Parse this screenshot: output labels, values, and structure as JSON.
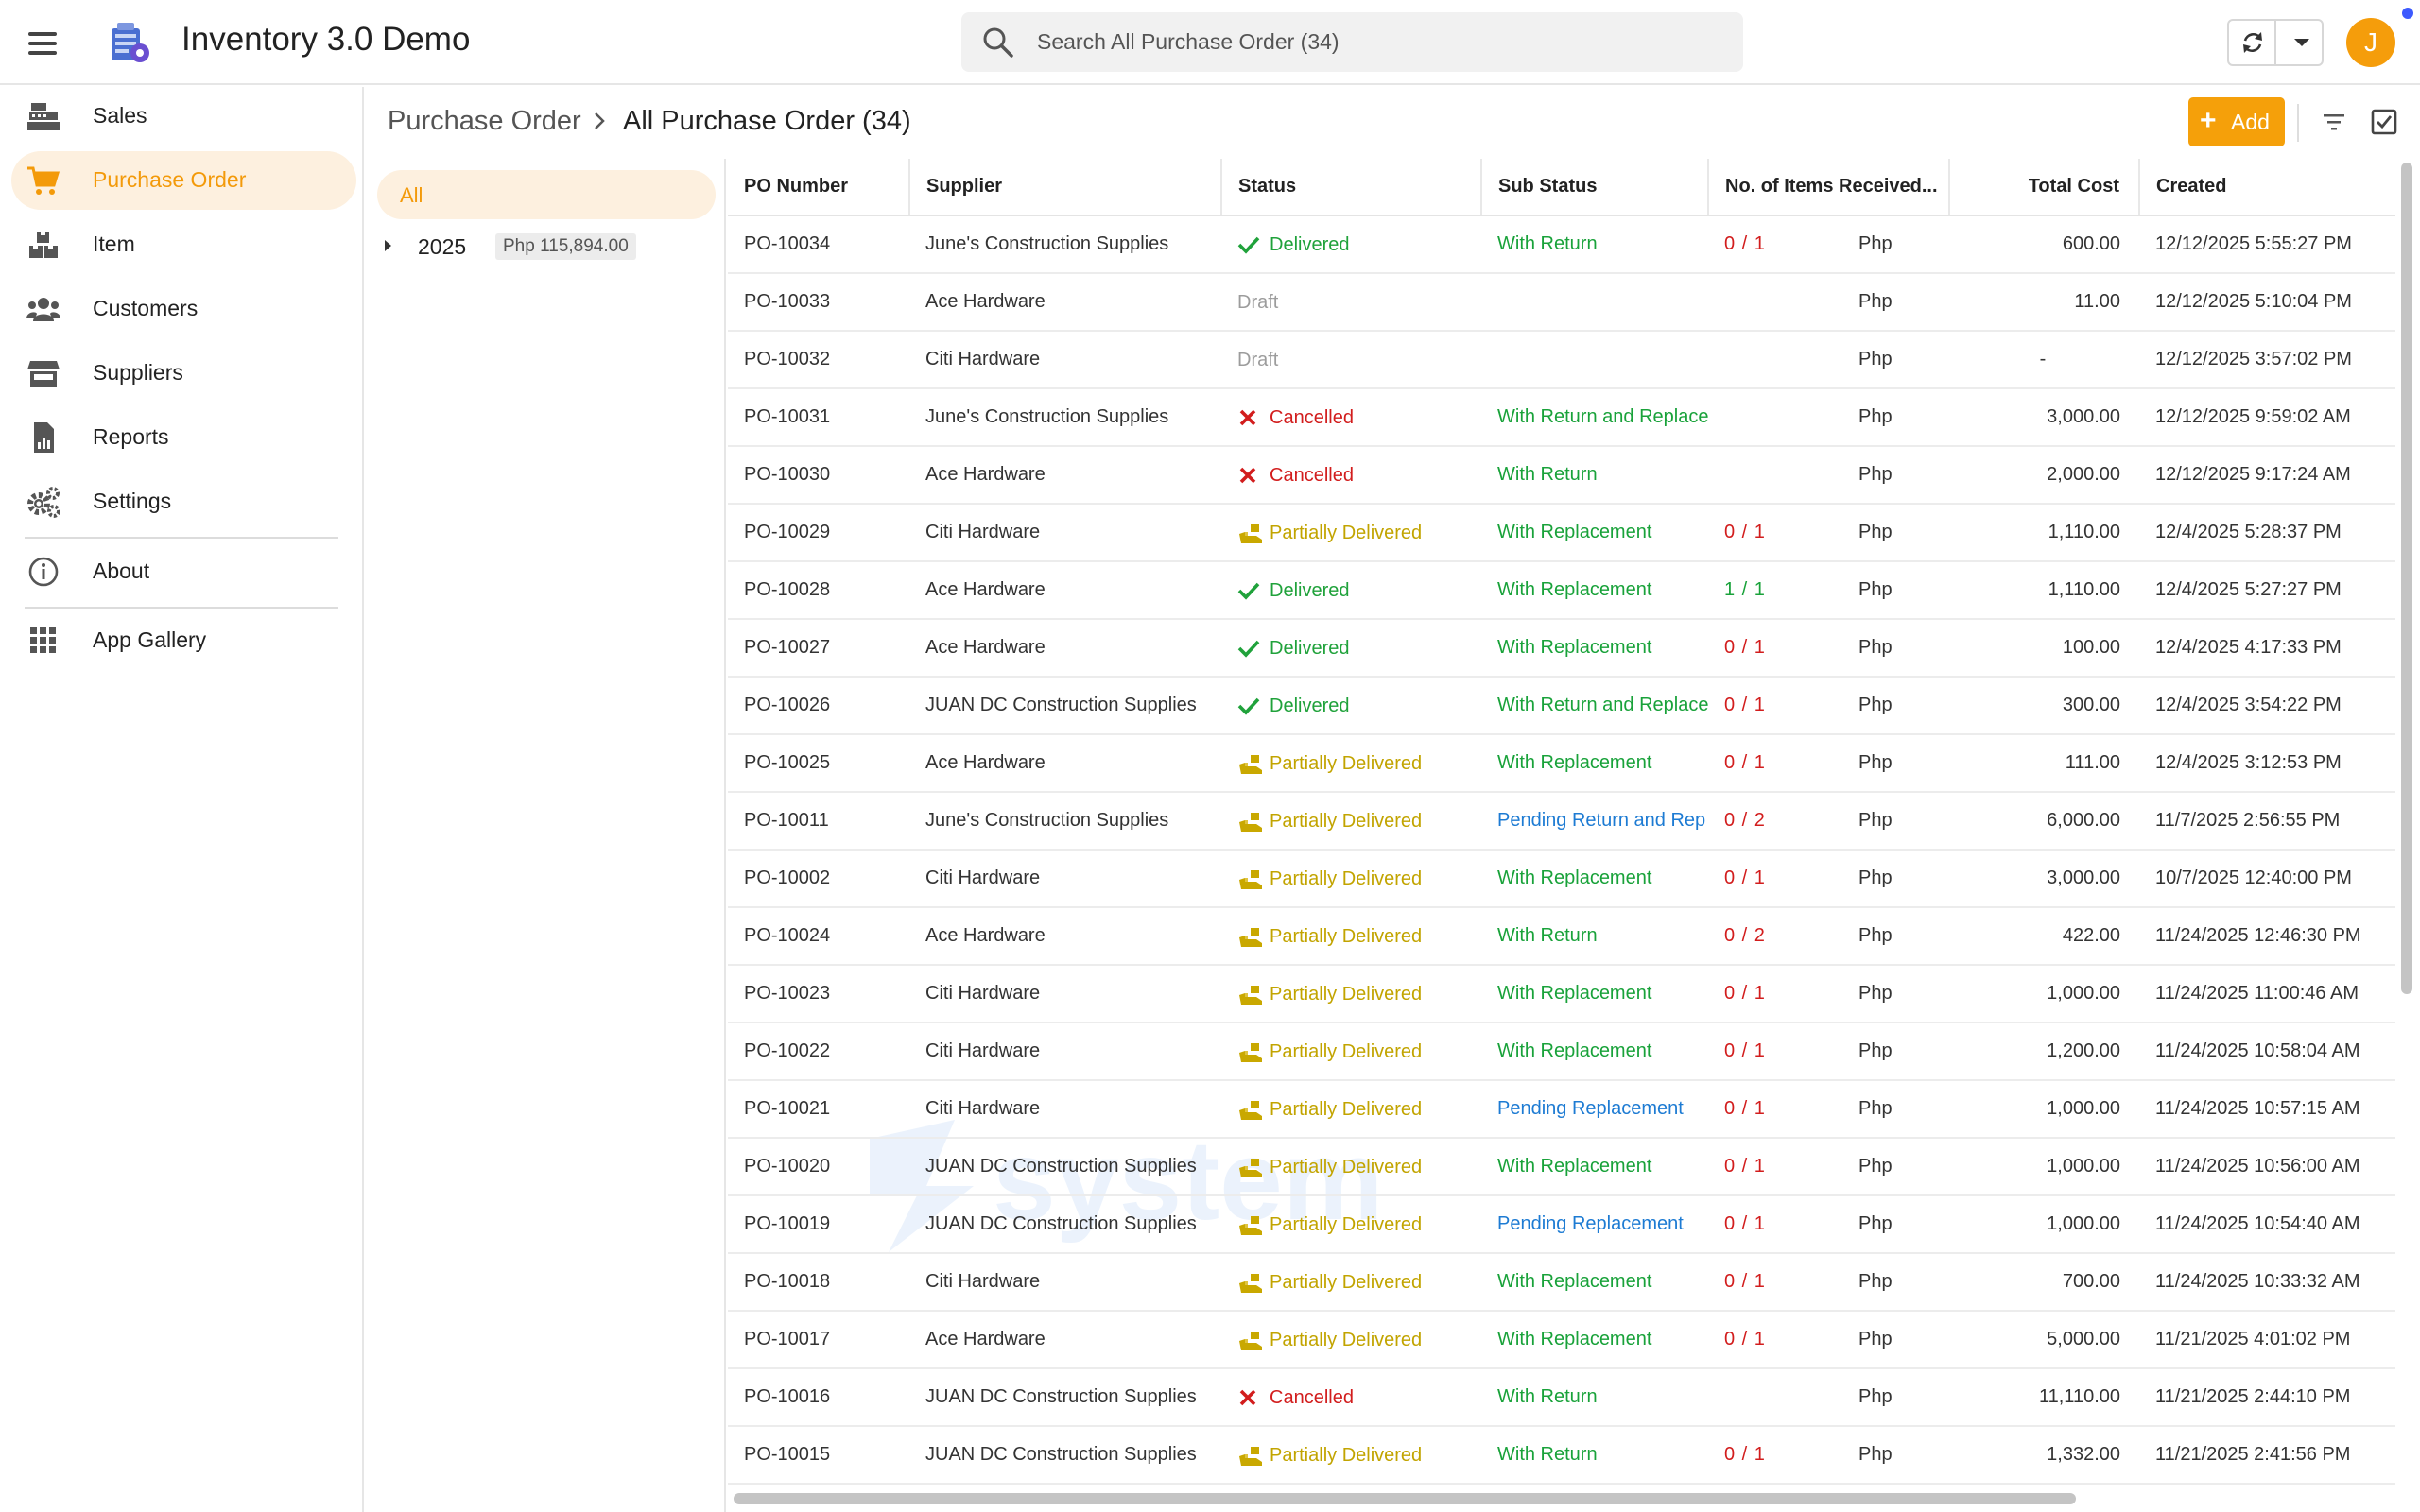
{
  "app": {
    "title": "Inventory 3.0 Demo",
    "user_initial": "J"
  },
  "search": {
    "placeholder": "Search All Purchase Order (34)"
  },
  "sidebar": {
    "items": [
      {
        "label": "Sales",
        "icon": "cash-register-icon"
      },
      {
        "label": "Purchase Order",
        "icon": "cart-icon",
        "active": true
      },
      {
        "label": "Item",
        "icon": "boxes-icon"
      },
      {
        "label": "Customers",
        "icon": "users-icon"
      },
      {
        "label": "Suppliers",
        "icon": "store-icon"
      },
      {
        "label": "Reports",
        "icon": "report-icon"
      },
      {
        "label": "Settings",
        "icon": "gears-icon"
      },
      {
        "label": "About",
        "icon": "info-icon"
      },
      {
        "label": "App Gallery",
        "icon": "grid-icon"
      }
    ]
  },
  "breadcrumb": {
    "root": "Purchase Order",
    "current": "All Purchase Order (34)"
  },
  "toolbar": {
    "add_label": "Add"
  },
  "groups": {
    "all_label": "All",
    "year": "2025",
    "year_total": "Php 115,894.00"
  },
  "table": {
    "columns": [
      "PO Number",
      "Supplier",
      "Status",
      "Sub Status",
      "No. of Items Received...",
      "Total Cost",
      "Created"
    ],
    "rows": [
      {
        "po": "PO-10034",
        "supplier": "June's Construction Supplies",
        "status": "Delivered",
        "sub_status": "With Return",
        "items": "0 / 1",
        "currency": "Php",
        "total": "600.00",
        "created": "12/12/2025 5:55:27 PM"
      },
      {
        "po": "PO-10033",
        "supplier": "Ace Hardware",
        "status": "Draft",
        "sub_status": "",
        "items": "",
        "currency": "Php",
        "total": "11.00",
        "created": "12/12/2025 5:10:04 PM"
      },
      {
        "po": "PO-10032",
        "supplier": "Citi Hardware",
        "status": "Draft",
        "sub_status": "",
        "items": "",
        "currency": "Php",
        "total": "-",
        "created": "12/12/2025 3:57:02 PM"
      },
      {
        "po": "PO-10031",
        "supplier": "June's Construction Supplies",
        "status": "Cancelled",
        "sub_status": "With Return and Replace",
        "items": "",
        "currency": "Php",
        "total": "3,000.00",
        "created": "12/12/2025 9:59:02 AM"
      },
      {
        "po": "PO-10030",
        "supplier": "Ace Hardware",
        "status": "Cancelled",
        "sub_status": "With Return",
        "items": "",
        "currency": "Php",
        "total": "2,000.00",
        "created": "12/12/2025 9:17:24 AM"
      },
      {
        "po": "PO-10029",
        "supplier": "Citi Hardware",
        "status": "Partially Delivered",
        "sub_status": "With Replacement",
        "items": "0 / 1",
        "currency": "Php",
        "total": "1,110.00",
        "created": "12/4/2025 5:28:37 PM"
      },
      {
        "po": "PO-10028",
        "supplier": "Ace Hardware",
        "status": "Delivered",
        "sub_status": "With Replacement",
        "items": "1 / 1",
        "currency": "Php",
        "total": "1,110.00",
        "created": "12/4/2025 5:27:27 PM"
      },
      {
        "po": "PO-10027",
        "supplier": "Ace Hardware",
        "status": "Delivered",
        "sub_status": "With Replacement",
        "items": "0 / 1",
        "currency": "Php",
        "total": "100.00",
        "created": "12/4/2025 4:17:33 PM"
      },
      {
        "po": "PO-10026",
        "supplier": "JUAN DC Construction Supplies",
        "status": "Delivered",
        "sub_status": "With Return and Replace",
        "items": "0 / 1",
        "currency": "Php",
        "total": "300.00",
        "created": "12/4/2025 3:54:22 PM"
      },
      {
        "po": "PO-10025",
        "supplier": "Ace Hardware",
        "status": "Partially Delivered",
        "sub_status": "With Replacement",
        "items": "0 / 1",
        "currency": "Php",
        "total": "111.00",
        "created": "12/4/2025 3:12:53 PM"
      },
      {
        "po": "PO-10011",
        "supplier": "June's Construction Supplies",
        "status": "Partially Delivered",
        "sub_status": "Pending Return and Rep",
        "items": "0 / 2",
        "currency": "Php",
        "total": "6,000.00",
        "created": "11/7/2025 2:56:55 PM"
      },
      {
        "po": "PO-10002",
        "supplier": "Citi Hardware",
        "status": "Partially Delivered",
        "sub_status": "With Replacement",
        "items": "0 / 1",
        "currency": "Php",
        "total": "3,000.00",
        "created": "10/7/2025 12:40:00 PM"
      },
      {
        "po": "PO-10024",
        "supplier": "Ace Hardware",
        "status": "Partially Delivered",
        "sub_status": "With Return",
        "items": "0 / 2",
        "currency": "Php",
        "total": "422.00",
        "created": "11/24/2025 12:46:30 PM"
      },
      {
        "po": "PO-10023",
        "supplier": "Citi Hardware",
        "status": "Partially Delivered",
        "sub_status": "With Replacement",
        "items": "0 / 1",
        "currency": "Php",
        "total": "1,000.00",
        "created": "11/24/2025 11:00:46 AM"
      },
      {
        "po": "PO-10022",
        "supplier": "Citi Hardware",
        "status": "Partially Delivered",
        "sub_status": "With Replacement",
        "items": "0 / 1",
        "currency": "Php",
        "total": "1,200.00",
        "created": "11/24/2025 10:58:04 AM"
      },
      {
        "po": "PO-10021",
        "supplier": "Citi Hardware",
        "status": "Partially Delivered",
        "sub_status": "Pending Replacement",
        "items": "0 / 1",
        "currency": "Php",
        "total": "1,000.00",
        "created": "11/24/2025 10:57:15 AM"
      },
      {
        "po": "PO-10020",
        "supplier": "JUAN DC Construction Supplies",
        "status": "Partially Delivered",
        "sub_status": "With Replacement",
        "items": "0 / 1",
        "currency": "Php",
        "total": "1,000.00",
        "created": "11/24/2025 10:56:00 AM"
      },
      {
        "po": "PO-10019",
        "supplier": "JUAN DC Construction Supplies",
        "status": "Partially Delivered",
        "sub_status": "Pending Replacement",
        "items": "0 / 1",
        "currency": "Php",
        "total": "1,000.00",
        "created": "11/24/2025 10:54:40 AM"
      },
      {
        "po": "PO-10018",
        "supplier": "Citi Hardware",
        "status": "Partially Delivered",
        "sub_status": "With Replacement",
        "items": "0 / 1",
        "currency": "Php",
        "total": "700.00",
        "created": "11/24/2025 10:33:32 AM"
      },
      {
        "po": "PO-10017",
        "supplier": "Ace Hardware",
        "status": "Partially Delivered",
        "sub_status": "With Replacement",
        "items": "0 / 1",
        "currency": "Php",
        "total": "5,000.00",
        "created": "11/21/2025 4:01:02 PM"
      },
      {
        "po": "PO-10016",
        "supplier": "JUAN DC Construction Supplies",
        "status": "Cancelled",
        "sub_status": "With Return",
        "items": "",
        "currency": "Php",
        "total": "11,110.00",
        "created": "11/21/2025 2:44:10 PM"
      },
      {
        "po": "PO-10015",
        "supplier": "JUAN DC Construction Supplies",
        "status": "Partially Delivered",
        "sub_status": "With Return",
        "items": "0 / 1",
        "currency": "Php",
        "total": "1,332.00",
        "created": "11/21/2025 2:41:56 PM"
      }
    ]
  },
  "colors": {
    "accent": "#f5a00a",
    "delivered": "#20a23b",
    "cancelled": "#d21d1d",
    "partial": "#c2a400",
    "pending": "#1d7bd3",
    "draft": "#9c9c9c"
  }
}
